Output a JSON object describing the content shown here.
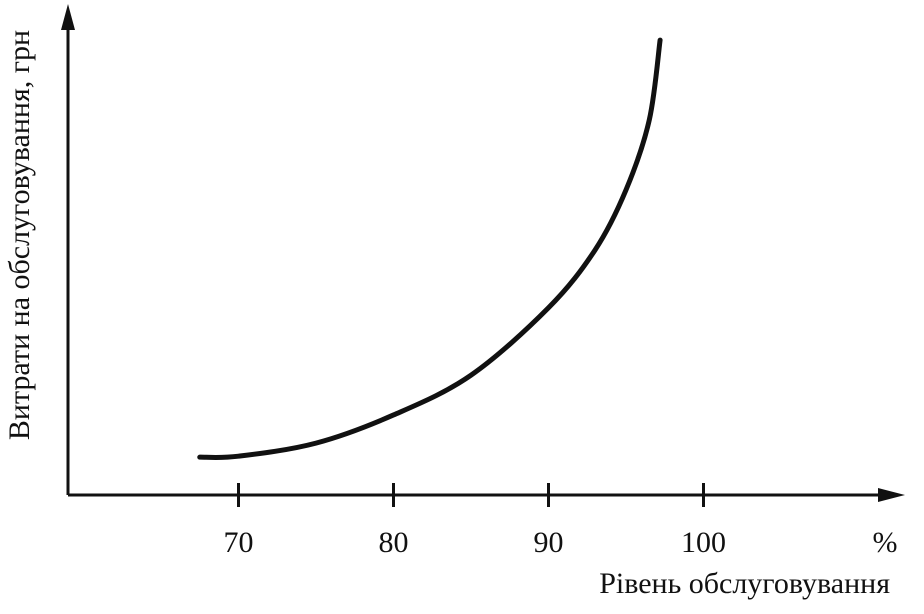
{
  "chart_data": {
    "type": "line",
    "x_label": "Рівень обслуговування",
    "y_label": "Витрати на обслуговування, грн",
    "x_unit": "%",
    "xlim": [
      59,
      113
    ],
    "xticks": [
      70,
      80,
      90,
      100
    ],
    "ylim": [
      0,
      100
    ],
    "grid": false,
    "series": [
      {
        "color": "#111111",
        "x": [
          67.5,
          70,
          75,
          80,
          85,
          90,
          93,
          95,
          96.5,
          97.2
        ],
        "values": [
          7.8,
          8,
          10.7,
          16.5,
          24.7,
          38.6,
          50.5,
          62.9,
          77.3,
          93.8
        ]
      }
    ]
  }
}
